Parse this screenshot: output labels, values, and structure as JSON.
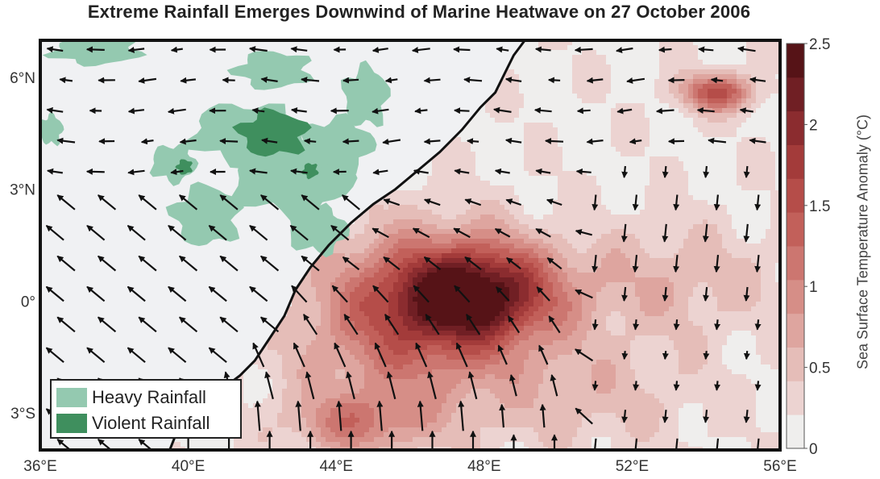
{
  "title": "Extreme Rainfall Emerges Downwind of Marine Heatwave on 27 October 2006",
  "map": {
    "lon_range": [
      36,
      56
    ],
    "lat_range": [
      -4,
      7
    ],
    "lon_ticks": [
      "36°E",
      "40°E",
      "44°E",
      "48°E",
      "52°E",
      "56°E"
    ],
    "lon_tick_values": [
      36,
      40,
      44,
      48,
      52,
      56
    ],
    "lat_ticks": [
      "6°N",
      "3°N",
      "0°",
      "3°S"
    ],
    "lat_tick_values": [
      6,
      3,
      0,
      -3
    ],
    "land_color": "#f0f1f3",
    "coastline_color": "#111111",
    "coastline": [
      [
        49.1,
        7.0
      ],
      [
        48.8,
        6.6
      ],
      [
        48.6,
        6.2
      ],
      [
        48.3,
        5.6
      ],
      [
        47.9,
        5.2
      ],
      [
        47.4,
        4.6
      ],
      [
        46.8,
        4.0
      ],
      [
        46.2,
        3.5
      ],
      [
        45.6,
        3.0
      ],
      [
        45.0,
        2.6
      ],
      [
        44.4,
        2.1
      ],
      [
        43.8,
        1.5
      ],
      [
        43.3,
        0.9
      ],
      [
        42.9,
        0.3
      ],
      [
        42.6,
        -0.4
      ],
      [
        42.2,
        -1.0
      ],
      [
        41.8,
        -1.6
      ],
      [
        41.4,
        -2.0
      ],
      [
        41.0,
        -2.3
      ],
      [
        40.5,
        -2.6
      ],
      [
        40.0,
        -3.0
      ],
      [
        39.7,
        -3.5
      ],
      [
        39.5,
        -4.0
      ]
    ],
    "sst_hotspots": [
      {
        "lon": 47.7,
        "lat": 0.2,
        "amplitude": 2.4,
        "sx": 2.2,
        "sy": 1.3
      },
      {
        "lon": 46.0,
        "lat": -0.6,
        "amplitude": 1.3,
        "sx": 3.0,
        "sy": 2.4
      },
      {
        "lon": 54.3,
        "lat": 5.6,
        "amplitude": 1.6,
        "sx": 1.0,
        "sy": 0.5
      },
      {
        "lon": 53.0,
        "lat": 0.5,
        "amplitude": 0.5,
        "sx": 3.0,
        "sy": 1.5
      },
      {
        "lon": 44.5,
        "lat": -3.3,
        "amplitude": 0.9,
        "sx": 1.8,
        "sy": 0.8
      },
      {
        "lon": 51.0,
        "lat": -2.5,
        "amplitude": 0.4,
        "sx": 3.0,
        "sy": 1.5
      }
    ],
    "sst_baseline": 0.2,
    "rain_blobs": [
      {
        "lon": 41.5,
        "lat": 4.5,
        "rx": 1.4,
        "ry": 0.8,
        "level": "heavy"
      },
      {
        "lon": 42.8,
        "lat": 3.3,
        "rx": 1.6,
        "ry": 1.0,
        "level": "heavy"
      },
      {
        "lon": 44.0,
        "lat": 4.2,
        "rx": 1.0,
        "ry": 0.7,
        "level": "heavy"
      },
      {
        "lon": 44.8,
        "lat": 5.5,
        "rx": 0.6,
        "ry": 0.8,
        "level": "heavy"
      },
      {
        "lon": 40.5,
        "lat": 2.3,
        "rx": 0.9,
        "ry": 0.8,
        "level": "heavy"
      },
      {
        "lon": 42.3,
        "lat": 6.2,
        "rx": 1.0,
        "ry": 0.5,
        "level": "heavy"
      },
      {
        "lon": 37.5,
        "lat": 6.7,
        "rx": 1.2,
        "ry": 0.35,
        "level": "heavy"
      },
      {
        "lon": 39.6,
        "lat": 3.7,
        "rx": 0.6,
        "ry": 0.5,
        "level": "heavy"
      },
      {
        "lon": 43.5,
        "lat": 1.9,
        "rx": 0.8,
        "ry": 0.6,
        "level": "heavy"
      },
      {
        "lon": 36.3,
        "lat": 4.6,
        "rx": 0.3,
        "ry": 0.4,
        "level": "heavy"
      },
      {
        "lon": 42.3,
        "lat": 4.5,
        "rx": 0.9,
        "ry": 0.6,
        "level": "violent"
      },
      {
        "lon": 39.9,
        "lat": 3.6,
        "rx": 0.2,
        "ry": 0.2,
        "level": "violent"
      },
      {
        "lon": 43.3,
        "lat": 3.5,
        "rx": 0.2,
        "ry": 0.2,
        "level": "violent"
      }
    ],
    "wind_field": {
      "lon_step": 1.1,
      "lat_step": 0.82
    }
  },
  "legend": {
    "items": [
      {
        "label": "Heavy Rainfall",
        "color": "#94c9b0"
      },
      {
        "label": "Violent Rainfall",
        "color": "#3f8f5e"
      }
    ]
  },
  "colorbar": {
    "label": "Sea Surface Temperature Anomaly (°C)",
    "min": 0,
    "max": 2.5,
    "step": 0.25,
    "ticks": [
      "0",
      "0.5",
      "1",
      "1.5",
      "2",
      "2.5"
    ],
    "colors": [
      "#efeeed",
      "#ecd3d1",
      "#e5bdb8",
      "#dea59f",
      "#d68e87",
      "#cc7670",
      "#c2605a",
      "#b54d49",
      "#a33b3a",
      "#8b2c2f",
      "#701f24",
      "#561317"
    ]
  }
}
